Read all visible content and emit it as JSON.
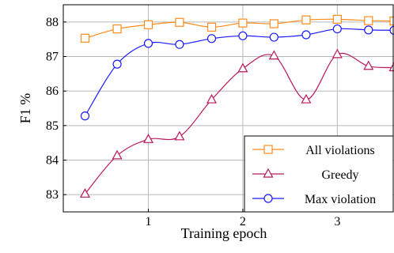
{
  "chart_data": {
    "type": "line",
    "xlabel": "Training epoch",
    "ylabel": "F1 %",
    "xlim": [
      0.1,
      3.6
    ],
    "ylim": [
      82.5,
      88.5
    ],
    "xticks": [
      1,
      2,
      3
    ],
    "yticks": [
      83,
      84,
      85,
      86,
      87,
      88
    ],
    "x": [
      0.33,
      0.67,
      1.0,
      1.33,
      1.67,
      2.0,
      2.33,
      2.67,
      3.0,
      3.33,
      3.6
    ],
    "grid": true,
    "smooth": true,
    "legend_position": "bottom-right",
    "series": [
      {
        "name": "All violations",
        "color": "#ff8c1a",
        "marker": "square",
        "values": [
          87.53,
          87.8,
          87.92,
          87.99,
          87.85,
          87.97,
          87.95,
          88.06,
          88.08,
          88.04,
          88.03
        ]
      },
      {
        "name": "Greedy",
        "color": "#b8195a",
        "marker": "triangle",
        "values": [
          83.02,
          84.13,
          84.6,
          84.68,
          85.75,
          86.65,
          87.02,
          85.75,
          87.06,
          86.72,
          86.68
        ]
      },
      {
        "name": "Max violation",
        "color": "#1a1aff",
        "marker": "circle",
        "values": [
          85.28,
          86.78,
          87.38,
          87.35,
          87.52,
          87.6,
          87.56,
          87.63,
          87.8,
          87.77,
          87.76
        ]
      }
    ]
  }
}
